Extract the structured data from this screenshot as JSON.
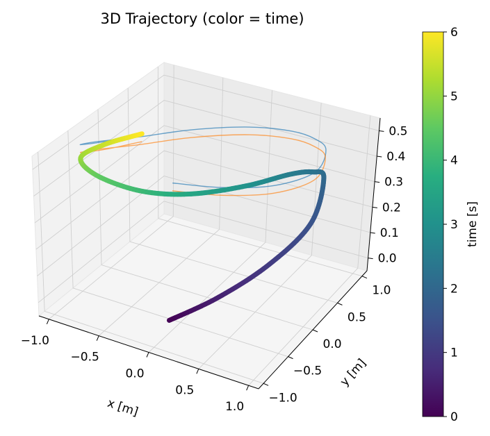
{
  "chart_data": {
    "type": "line",
    "projection": "3d",
    "title": "3D Trajectory (color = time)",
    "xlabel": "x [m]",
    "ylabel": "y [m]",
    "zlabel": "",
    "xlim": [
      -1.1,
      1.1
    ],
    "ylim": [
      -1.1,
      1.1
    ],
    "zlim": [
      -0.05,
      0.55
    ],
    "x_ticks": [
      "−1.0",
      "−0.5",
      "0.0",
      "0.5",
      "1.0"
    ],
    "x_tick_values": [
      -1.0,
      -0.5,
      0.0,
      0.5,
      1.0
    ],
    "y_ticks": [
      "−1.0",
      "−0.5",
      "0.0",
      "0.5",
      "1.0"
    ],
    "y_tick_values": [
      -1.0,
      -0.5,
      0.0,
      0.5,
      1.0
    ],
    "z_ticks": [
      "0.0",
      "0.1",
      "0.2",
      "0.3",
      "0.4",
      "0.5"
    ],
    "z_tick_values": [
      0.0,
      0.1,
      0.2,
      0.3,
      0.4,
      0.5
    ],
    "grid": true,
    "colorbar": {
      "label": "time [s]",
      "colormap": "viridis",
      "range": [
        0,
        6
      ],
      "ticks": [
        "0",
        "1",
        "2",
        "3",
        "4",
        "5",
        "6"
      ],
      "tick_values": [
        0,
        1,
        2,
        3,
        4,
        5,
        6
      ]
    },
    "series": [
      {
        "kind": "trajectory",
        "color_by": "time",
        "t": [
          0,
          0.5,
          1.0,
          1.5,
          2.0,
          2.25,
          2.5,
          3.0,
          3.5,
          4.0,
          4.5,
          5.0,
          5.5,
          6.0
        ],
        "x": [
          0.0,
          0.38,
          0.74,
          0.95,
          0.87,
          0.7,
          0.46,
          0.1,
          -0.3,
          -0.6,
          -0.86,
          -0.94,
          -0.8,
          -0.62
        ],
        "y": [
          -0.72,
          -0.55,
          -0.28,
          0.1,
          0.48,
          0.6,
          0.62,
          0.5,
          0.2,
          -0.15,
          -0.45,
          -0.58,
          -0.4,
          -0.1
        ],
        "z": [
          0.0,
          0.1,
          0.22,
          0.33,
          0.42,
          0.4,
          0.36,
          0.3,
          0.28,
          0.32,
          0.4,
          0.48,
          0.52,
          0.53
        ],
        "line_color": "viridis"
      },
      {
        "kind": "projection",
        "color": "#1f77b4",
        "x": [
          0.0,
          0.38,
          0.74,
          0.95,
          0.87,
          0.7,
          0.46,
          0.1,
          -0.3,
          -0.6,
          -0.86,
          -0.94,
          -0.8,
          -0.62
        ],
        "y": [
          -0.72,
          -0.55,
          -0.28,
          0.1,
          0.48,
          0.6,
          0.62,
          0.5,
          0.2,
          -0.15,
          -0.45,
          -0.58,
          -0.4,
          -0.1
        ],
        "z": [
          0.53,
          0.53,
          0.53,
          0.53,
          0.53,
          0.53,
          0.53,
          0.53,
          0.53,
          0.53,
          0.53,
          0.53,
          0.53,
          0.53
        ]
      },
      {
        "kind": "projection",
        "color": "#ff7f0e",
        "x": [
          0.0,
          0.38,
          0.74,
          0.95,
          0.87,
          0.7,
          0.46,
          0.1,
          -0.3,
          -0.6,
          -0.86,
          -0.94,
          -0.8,
          -0.62
        ],
        "y": [
          -0.72,
          -0.55,
          -0.28,
          0.1,
          0.48,
          0.6,
          0.62,
          0.5,
          0.2,
          -0.15,
          -0.45,
          -0.58,
          -0.4,
          -0.1
        ],
        "z": [
          0.5,
          0.5,
          0.5,
          0.5,
          0.5,
          0.5,
          0.5,
          0.5,
          0.5,
          0.5,
          0.5,
          0.5,
          0.5,
          0.5
        ]
      }
    ]
  }
}
